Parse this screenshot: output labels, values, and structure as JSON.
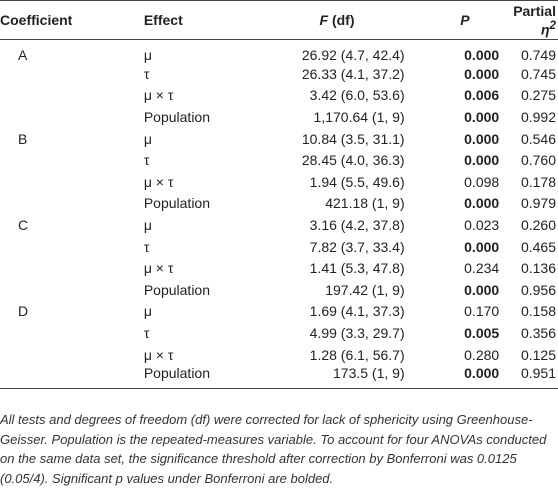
{
  "headers": {
    "coefficient": "Coefficient",
    "effect": "Effect",
    "f_df_letter": "F",
    "f_df_suffix": " (df)",
    "p": "P",
    "partial_eta": "Partial ",
    "eta_symbol": "η",
    "eta_sup": "2"
  },
  "rows": [
    {
      "coef": "A",
      "effect": "μ",
      "f": "26.92 (4.7, 42.4)",
      "p": "0.000",
      "p_sig": true,
      "eta": "0.749"
    },
    {
      "coef": "",
      "effect": "τ",
      "f": "26.33 (4.1, 37.2)",
      "p": "0.000",
      "p_sig": true,
      "eta": "0.745"
    },
    {
      "coef": "",
      "effect": "μ × τ",
      "f": "3.42 (6.0, 53.6)",
      "p": "0.006",
      "p_sig": true,
      "eta": "0.275"
    },
    {
      "coef": "",
      "effect": "Population",
      "f": "1,170.64 (1, 9)",
      "p": "0.000",
      "p_sig": true,
      "eta": "0.992"
    },
    {
      "coef": "B",
      "effect": "μ",
      "f": "10.84 (3.5, 31.1)",
      "p": "0.000",
      "p_sig": true,
      "eta": "0.546"
    },
    {
      "coef": "",
      "effect": "τ",
      "f": "28.45 (4.0, 36.3)",
      "p": "0.000",
      "p_sig": true,
      "eta": "0.760"
    },
    {
      "coef": "",
      "effect": "μ × τ",
      "f": "1.94 (5.5, 49.6)",
      "p": "0.098",
      "p_sig": false,
      "eta": "0.178"
    },
    {
      "coef": "",
      "effect": "Population",
      "f": "421.18 (1, 9)",
      "p": "0.000",
      "p_sig": true,
      "eta": "0.979"
    },
    {
      "coef": "C",
      "effect": "μ",
      "f": "3.16 (4.2, 37.8)",
      "p": "0.023",
      "p_sig": false,
      "eta": "0.260"
    },
    {
      "coef": "",
      "effect": "τ",
      "f": "7.82 (3.7, 33.4)",
      "p": "0.000",
      "p_sig": true,
      "eta": "0.465"
    },
    {
      "coef": "",
      "effect": "μ × τ",
      "f": "1.41 (5.3, 47.8)",
      "p": "0.234",
      "p_sig": false,
      "eta": "0.136"
    },
    {
      "coef": "",
      "effect": "Population",
      "f": "197.42 (1, 9)",
      "p": "0.000",
      "p_sig": true,
      "eta": "0.956"
    },
    {
      "coef": "D",
      "effect": "μ",
      "f": "1.69 (4.1, 37.3)",
      "p": "0.170",
      "p_sig": false,
      "eta": "0.158"
    },
    {
      "coef": "",
      "effect": "τ",
      "f": "4.99 (3.3, 29.7)",
      "p": "0.005",
      "p_sig": true,
      "eta": "0.356"
    },
    {
      "coef": "",
      "effect": "μ × τ",
      "f": "1.28 (6.1, 56.7)",
      "p": "0.280",
      "p_sig": false,
      "eta": "0.125"
    },
    {
      "coef": "",
      "effect": "Population",
      "f": "173.5 (1, 9)",
      "p": "0.000",
      "p_sig": true,
      "eta": "0.951"
    }
  ],
  "footnote": "All tests and degrees of freedom (df) were corrected for lack of sphericity using Greenhouse-Geisser. Population is the repeated-measures variable. To account for four ANOVAs conducted on the same data set, the significance threshold after correction by Bonferroni was 0.0125 (0.05/4). Significant p values under Bonferroni are bolded."
}
